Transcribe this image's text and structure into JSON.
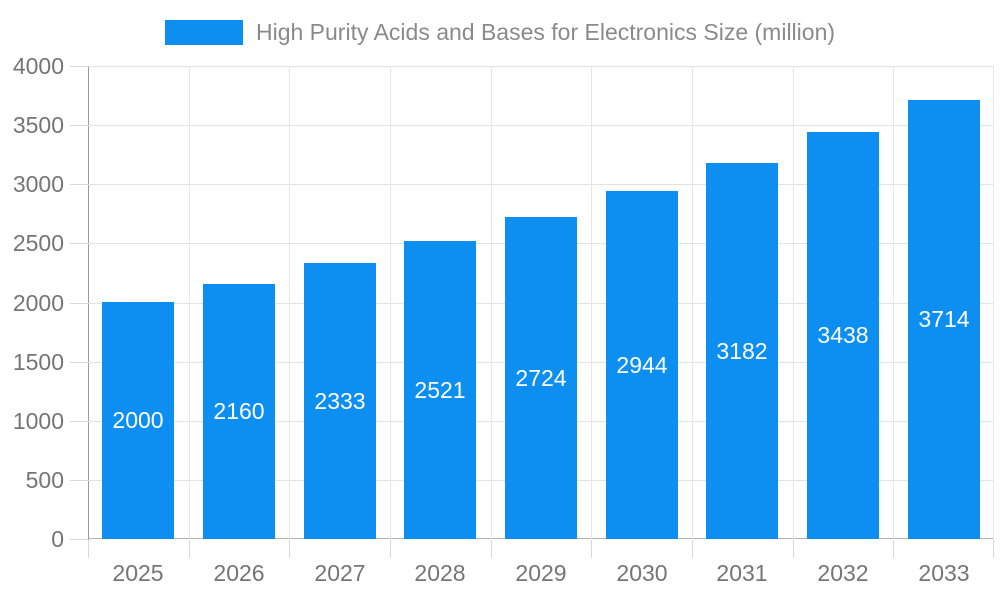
{
  "legend": {
    "label": "High Purity Acids and Bases for Electronics Size (million)"
  },
  "colors": {
    "bar": "#0d8ff2",
    "title_text": "#8a8a8a",
    "axis_text": "#757575",
    "grid_horizontal": "#e2e2e2",
    "grid_vertical": "#e6e6e6",
    "axis_line": "#999999",
    "zero_line": "#b3b3b3",
    "value_label": "#ffffff",
    "background": "#ffffff"
  },
  "chart_data": {
    "type": "bar",
    "title": "High Purity Acids and Bases for Electronics Size (million)",
    "categories": [
      "2025",
      "2026",
      "2027",
      "2028",
      "2029",
      "2030",
      "2031",
      "2032",
      "2033"
    ],
    "values": [
      2000,
      2160,
      2333,
      2521,
      2724,
      2944,
      3182,
      3438,
      3714
    ],
    "xlabel": "",
    "ylabel": "",
    "ylim": [
      0,
      4000
    ],
    "ytick_step": 500,
    "yticks": [
      "0",
      "500",
      "1000",
      "1500",
      "2000",
      "2500",
      "3000",
      "3500",
      "4000"
    ],
    "grid": true,
    "legend_position": "top",
    "value_labels": "inside-center"
  }
}
